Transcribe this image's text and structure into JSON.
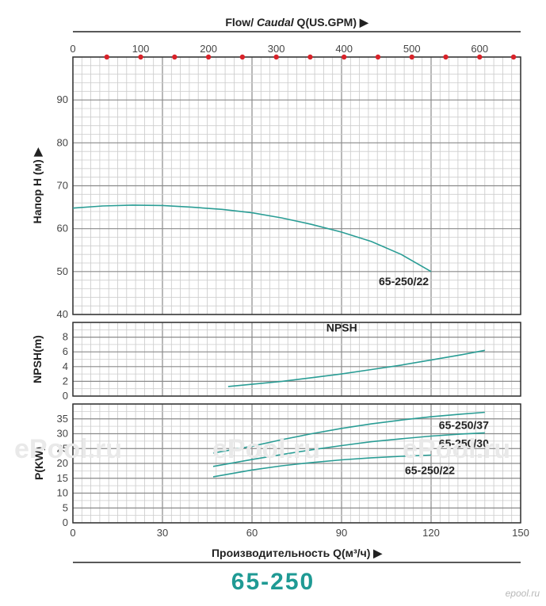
{
  "chart_data": {
    "type": "line",
    "top_axis": {
      "label_prefix": "Flow/ ",
      "label_italic": "Caudal",
      "label_suffix": " Q(US.GPM)",
      "ticks": [
        "0",
        "100",
        "200",
        "300",
        "400",
        "500",
        "600"
      ],
      "marker_color": "#d9232a"
    },
    "x_axis": {
      "label": "Производительность Q(м³/ч)",
      "ticks": [
        "0",
        "30",
        "60",
        "90",
        "120",
        "150"
      ],
      "range": [
        0,
        150
      ]
    },
    "panels": [
      {
        "name": "head",
        "ylabel": "Напор H (м)",
        "yrange": [
          40,
          100
        ],
        "yticks": [
          "40",
          "50",
          "60",
          "70",
          "80",
          "90"
        ],
        "series": [
          {
            "name": "65-250/22",
            "x": [
              0,
              10,
              20,
              30,
              40,
              50,
              60,
              70,
              80,
              90,
              100,
              110,
              120
            ],
            "y": [
              64.8,
              65.3,
              65.5,
              65.4,
              65.0,
              64.5,
              63.7,
              62.5,
              61.0,
              59.2,
              57.0,
              54.0,
              50.0
            ]
          }
        ]
      },
      {
        "name": "npsh",
        "ylabel": "NPSH(m)",
        "yrange": [
          0,
          10
        ],
        "yticks": [
          "0",
          "2",
          "4",
          "6",
          "8"
        ],
        "series": [
          {
            "name": "NPSH",
            "x": [
              52,
              60,
              70,
              80,
              90,
              100,
              110,
              120,
              130,
              138
            ],
            "y": [
              1.3,
              1.6,
              2.0,
              2.5,
              3.0,
              3.6,
              4.2,
              4.9,
              5.6,
              6.2
            ]
          }
        ]
      },
      {
        "name": "power",
        "ylabel": "P(KW)",
        "yrange": [
          0,
          40
        ],
        "yticks": [
          "0",
          "5",
          "10",
          "15",
          "20",
          "25",
          "30",
          "35"
        ],
        "series": [
          {
            "name": "65-250/37",
            "x": [
              47,
              60,
              70,
              80,
              90,
              100,
              110,
              120,
              130,
              138
            ],
            "y": [
              23.5,
              25.8,
              28.0,
              30.0,
              31.8,
              33.3,
              34.6,
              35.7,
              36.6,
              37.2
            ]
          },
          {
            "name": "65-250/30",
            "x": [
              47,
              60,
              70,
              80,
              90,
              100,
              110,
              120,
              130,
              138
            ],
            "y": [
              19.0,
              21.3,
              23.0,
              24.6,
              26.0,
              27.3,
              28.3,
              29.2,
              29.9,
              30.3
            ]
          },
          {
            "name": "65-250/22",
            "x": [
              47,
              60,
              70,
              80,
              90,
              100,
              110,
              120
            ],
            "y": [
              15.5,
              17.8,
              19.2,
              20.3,
              21.2,
              21.9,
              22.4,
              22.8
            ]
          }
        ]
      }
    ],
    "line_color": "#2a9d95",
    "grid": true
  },
  "model": "65-250",
  "watermarks": [
    "ePool.ru",
    "ePool.ru",
    "ePool.ru"
  ],
  "credit": "epool.ru"
}
